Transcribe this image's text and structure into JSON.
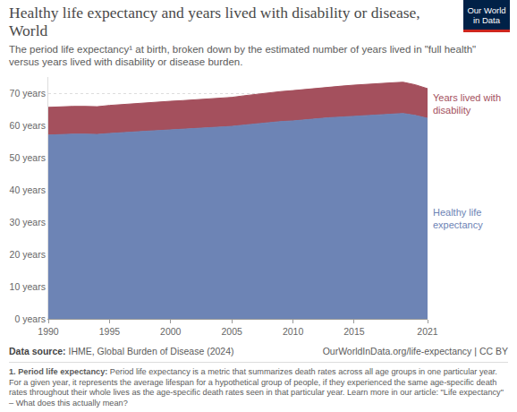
{
  "chart_data": {
    "type": "area",
    "stacked": true,
    "title": "Healthy life expectancy and years lived with disability or disease, World",
    "subtitle": "The period life expectancy¹ at birth, broken down by the estimated number of years lived in \"full health\" versus years lived with disability or disease burden.",
    "logo": "Our World in Data",
    "source": "Data source: IHME, Global Burden of Disease (2024)",
    "url": "OurWorldInData.org/life-expectancy | CC BY",
    "footnote": {
      "label": "1. Period life expectancy:",
      "text": "Period life expectancy is a metric that summarizes death rates across all age groups in one particular year. For a given year, it represents the average lifespan for a hypothetical group of people, if they experienced the same age-specific death rates throughout their whole lives as the age-specific death rates seen in that particular year. Learn more in our article: \"Life expectancy\" – What does this actually mean?"
    },
    "x": [
      1990,
      1991,
      1992,
      1993,
      1994,
      1995,
      1996,
      1997,
      1998,
      1999,
      2000,
      2001,
      2002,
      2003,
      2004,
      2005,
      2006,
      2007,
      2008,
      2009,
      2010,
      2011,
      2012,
      2013,
      2014,
      2015,
      2016,
      2017,
      2018,
      2019,
      2020,
      2021
    ],
    "series": [
      {
        "name": "Healthy life expectancy",
        "color": "#6d84b5",
        "values": [
          57.0,
          57.2,
          57.3,
          57.3,
          57.2,
          57.5,
          57.8,
          58.0,
          58.2,
          58.4,
          58.6,
          58.8,
          59.0,
          59.2,
          59.4,
          59.7,
          60.1,
          60.5,
          60.8,
          61.2,
          61.4,
          61.8,
          62.1,
          62.4,
          62.6,
          62.8,
          63.1,
          63.3,
          63.5,
          63.7,
          63.1,
          62.2
        ]
      },
      {
        "name": "Years lived with disability",
        "color": "#a4505d",
        "values": [
          8.6,
          8.6,
          8.6,
          8.6,
          8.6,
          8.7,
          8.7,
          8.8,
          8.8,
          8.8,
          8.9,
          8.9,
          8.9,
          8.9,
          9.0,
          9.0,
          9.1,
          9.2,
          9.2,
          9.3,
          9.4,
          9.4,
          9.5,
          9.5,
          9.6,
          9.7,
          9.7,
          9.7,
          9.7,
          9.7,
          9.5,
          9.2
        ]
      }
    ],
    "xlim": [
      1990,
      2021
    ],
    "xticks": [
      1990,
      1995,
      2000,
      2005,
      2010,
      2015,
      2021
    ],
    "ylim": [
      0,
      75
    ],
    "yticks": [
      {
        "value": 0,
        "label": "0 years"
      },
      {
        "value": 10,
        "label": "10 years"
      },
      {
        "value": 20,
        "label": "20 years"
      },
      {
        "value": 30,
        "label": "30 years"
      },
      {
        "value": 40,
        "label": "40 years"
      },
      {
        "value": 50,
        "label": "50 years"
      },
      {
        "value": 60,
        "label": "60 years"
      },
      {
        "value": 70,
        "label": "70 years"
      }
    ],
    "grid": true
  }
}
